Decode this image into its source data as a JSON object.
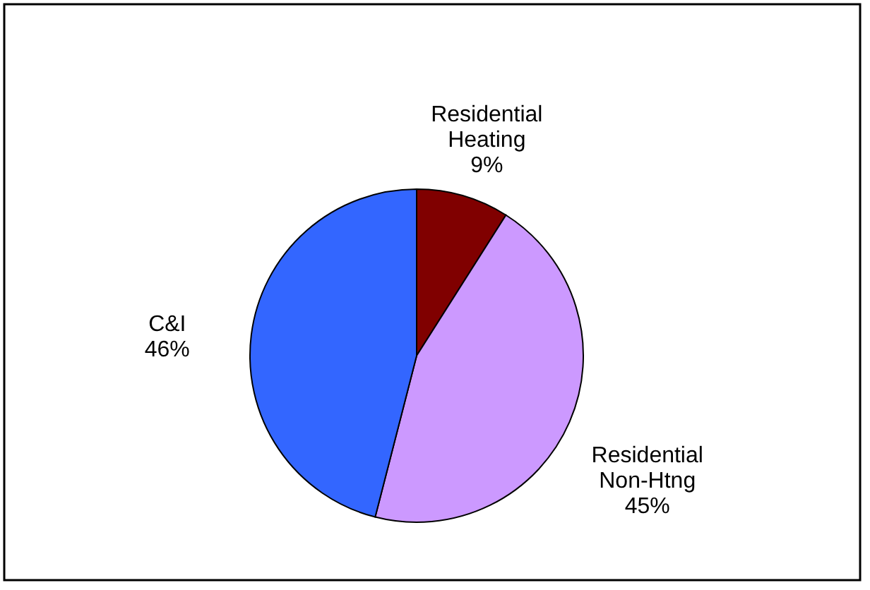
{
  "chart_data": {
    "type": "pie",
    "categories": [
      "Residential Heating",
      "Residential Non-Htng",
      "C&I"
    ],
    "values": [
      9,
      45,
      46
    ],
    "value_labels": [
      "9%",
      "45%",
      "46%"
    ],
    "colors": [
      "#800000",
      "#cc99ff",
      "#3366ff"
    ]
  }
}
